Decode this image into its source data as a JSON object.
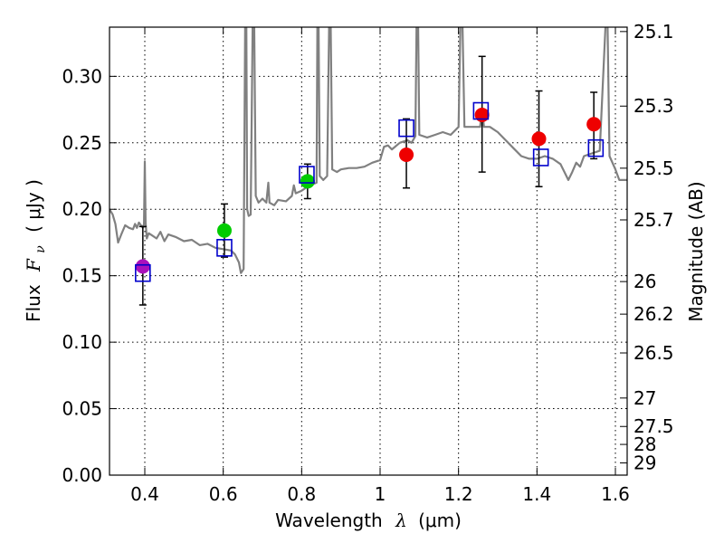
{
  "chart_data": {
    "type": "scatter",
    "xlabel_text": "Wavelength",
    "xlabel_symbol": "λ",
    "xlabel_unit": "(μm)",
    "ylabel_text": "Flux",
    "ylabel_symbol": "F",
    "ylabel_sub": "ν",
    "ylabel_unit": "( μJy )",
    "y2label": "Magnitude (AB)",
    "xlim": [
      0.31,
      1.63
    ],
    "ylim": [
      0.0,
      0.337
    ],
    "grid": true,
    "x_ticks": [
      0.4,
      0.6,
      0.8,
      1.0,
      1.2,
      1.4,
      1.6
    ],
    "x_tick_labels": [
      "0.4",
      "0.6",
      "0.8",
      "1",
      "1.2",
      "1.4",
      "1.6"
    ],
    "y_ticks": [
      0.0,
      0.05,
      0.1,
      0.15,
      0.2,
      0.25,
      0.3
    ],
    "y_tick_labels": [
      "0.00",
      "0.05",
      "0.10",
      "0.15",
      "0.20",
      "0.25",
      "0.30"
    ],
    "y2_ticks": [
      {
        "label": "25.1",
        "flux": 0.3337
      },
      {
        "label": "25.3",
        "flux": 0.2776
      },
      {
        "label": "25.5",
        "flux": 0.2309
      },
      {
        "label": "25.7",
        "flux": 0.192
      },
      {
        "label": "26",
        "flux": 0.1456
      },
      {
        "label": "26.2",
        "flux": 0.1211
      },
      {
        "label": "26.5",
        "flux": 0.0919
      },
      {
        "label": "27",
        "flux": 0.058
      },
      {
        "label": "27.5",
        "flux": 0.0366
      },
      {
        "label": "28",
        "flux": 0.0231
      },
      {
        "label": "29",
        "flux": 0.0092
      }
    ],
    "colors": {
      "model": "#808080",
      "model_points": "#0000cc",
      "violet": "#aa11bb",
      "green": "#00cc00",
      "red": "#ee0000",
      "errorbar": "#000000"
    },
    "observed": [
      {
        "x": 0.395,
        "y": 0.157,
        "err_low": 0.128,
        "err_high": 0.187,
        "color": "violet"
      },
      {
        "x": 0.603,
        "y": 0.184,
        "err_low": 0.164,
        "err_high": 0.204,
        "color": "green"
      },
      {
        "x": 0.815,
        "y": 0.221,
        "err_low": 0.208,
        "err_high": 0.234,
        "color": "green"
      },
      {
        "x": 1.067,
        "y": 0.241,
        "err_low": 0.216,
        "err_high": 0.268,
        "color": "red"
      },
      {
        "x": 1.26,
        "y": 0.271,
        "err_low": 0.228,
        "err_high": 0.315,
        "color": "red"
      },
      {
        "x": 1.405,
        "y": 0.253,
        "err_low": 0.217,
        "err_high": 0.289,
        "color": "red"
      },
      {
        "x": 1.545,
        "y": 0.264,
        "err_low": 0.238,
        "err_high": 0.288,
        "color": "red"
      }
    ],
    "model_points": [
      {
        "x": 0.395,
        "y": 0.152
      },
      {
        "x": 0.603,
        "y": 0.171
      },
      {
        "x": 0.813,
        "y": 0.226
      },
      {
        "x": 1.067,
        "y": 0.261
      },
      {
        "x": 1.257,
        "y": 0.274
      },
      {
        "x": 1.41,
        "y": 0.239
      },
      {
        "x": 1.55,
        "y": 0.246
      }
    ],
    "model_spectrum": [
      [
        0.31,
        0.2
      ],
      [
        0.318,
        0.196
      ],
      [
        0.325,
        0.189
      ],
      [
        0.332,
        0.175
      ],
      [
        0.34,
        0.181
      ],
      [
        0.35,
        0.188
      ],
      [
        0.36,
        0.186
      ],
      [
        0.37,
        0.185
      ],
      [
        0.375,
        0.189
      ],
      [
        0.38,
        0.186
      ],
      [
        0.385,
        0.19
      ],
      [
        0.39,
        0.188
      ],
      [
        0.395,
        0.186
      ],
      [
        0.398,
        0.189
      ],
      [
        0.4,
        0.236
      ],
      [
        0.402,
        0.19
      ],
      [
        0.405,
        0.178
      ],
      [
        0.41,
        0.182
      ],
      [
        0.42,
        0.18
      ],
      [
        0.43,
        0.178
      ],
      [
        0.44,
        0.183
      ],
      [
        0.45,
        0.176
      ],
      [
        0.46,
        0.181
      ],
      [
        0.48,
        0.179
      ],
      [
        0.5,
        0.176
      ],
      [
        0.52,
        0.177
      ],
      [
        0.54,
        0.173
      ],
      [
        0.56,
        0.174
      ],
      [
        0.58,
        0.171
      ],
      [
        0.6,
        0.17
      ],
      [
        0.62,
        0.169
      ],
      [
        0.63,
        0.166
      ],
      [
        0.64,
        0.16
      ],
      [
        0.645,
        0.152
      ],
      [
        0.652,
        0.155
      ],
      [
        0.656,
        0.34
      ],
      [
        0.659,
        0.34
      ],
      [
        0.661,
        0.2
      ],
      [
        0.665,
        0.195
      ],
      [
        0.67,
        0.196
      ],
      [
        0.675,
        0.34
      ],
      [
        0.679,
        0.34
      ],
      [
        0.683,
        0.21
      ],
      [
        0.69,
        0.205
      ],
      [
        0.7,
        0.208
      ],
      [
        0.71,
        0.205
      ],
      [
        0.715,
        0.22
      ],
      [
        0.718,
        0.205
      ],
      [
        0.73,
        0.203
      ],
      [
        0.74,
        0.207
      ],
      [
        0.76,
        0.206
      ],
      [
        0.775,
        0.21
      ],
      [
        0.78,
        0.218
      ],
      [
        0.785,
        0.212
      ],
      [
        0.8,
        0.214
      ],
      [
        0.82,
        0.218
      ],
      [
        0.838,
        0.22
      ],
      [
        0.84,
        0.34
      ],
      [
        0.843,
        0.34
      ],
      [
        0.846,
        0.225
      ],
      [
        0.855,
        0.222
      ],
      [
        0.865,
        0.225
      ],
      [
        0.87,
        0.34
      ],
      [
        0.874,
        0.34
      ],
      [
        0.878,
        0.23
      ],
      [
        0.89,
        0.228
      ],
      [
        0.9,
        0.23
      ],
      [
        0.92,
        0.231
      ],
      [
        0.94,
        0.231
      ],
      [
        0.96,
        0.232
      ],
      [
        0.98,
        0.235
      ],
      [
        1.0,
        0.237
      ],
      [
        1.01,
        0.247
      ],
      [
        1.02,
        0.248
      ],
      [
        1.03,
        0.245
      ],
      [
        1.05,
        0.25
      ],
      [
        1.07,
        0.252
      ],
      [
        1.08,
        0.25
      ],
      [
        1.09,
        0.255
      ],
      [
        1.093,
        0.34
      ],
      [
        1.097,
        0.34
      ],
      [
        1.1,
        0.256
      ],
      [
        1.12,
        0.254
      ],
      [
        1.14,
        0.256
      ],
      [
        1.16,
        0.258
      ],
      [
        1.18,
        0.256
      ],
      [
        1.2,
        0.262
      ],
      [
        1.205,
        0.34
      ],
      [
        1.21,
        0.34
      ],
      [
        1.215,
        0.262
      ],
      [
        1.23,
        0.262
      ],
      [
        1.255,
        0.262
      ],
      [
        1.26,
        0.275
      ],
      [
        1.265,
        0.262
      ],
      [
        1.28,
        0.262
      ],
      [
        1.3,
        0.258
      ],
      [
        1.32,
        0.252
      ],
      [
        1.34,
        0.246
      ],
      [
        1.36,
        0.24
      ],
      [
        1.38,
        0.238
      ],
      [
        1.4,
        0.238
      ],
      [
        1.42,
        0.24
      ],
      [
        1.44,
        0.238
      ],
      [
        1.46,
        0.234
      ],
      [
        1.47,
        0.228
      ],
      [
        1.48,
        0.222
      ],
      [
        1.49,
        0.228
      ],
      [
        1.5,
        0.235
      ],
      [
        1.51,
        0.232
      ],
      [
        1.52,
        0.24
      ],
      [
        1.54,
        0.242
      ],
      [
        1.56,
        0.244
      ],
      [
        1.575,
        0.34
      ],
      [
        1.58,
        0.34
      ],
      [
        1.585,
        0.24
      ],
      [
        1.6,
        0.23
      ],
      [
        1.61,
        0.222
      ],
      [
        1.62,
        0.222
      ],
      [
        1.63,
        0.222
      ]
    ]
  }
}
